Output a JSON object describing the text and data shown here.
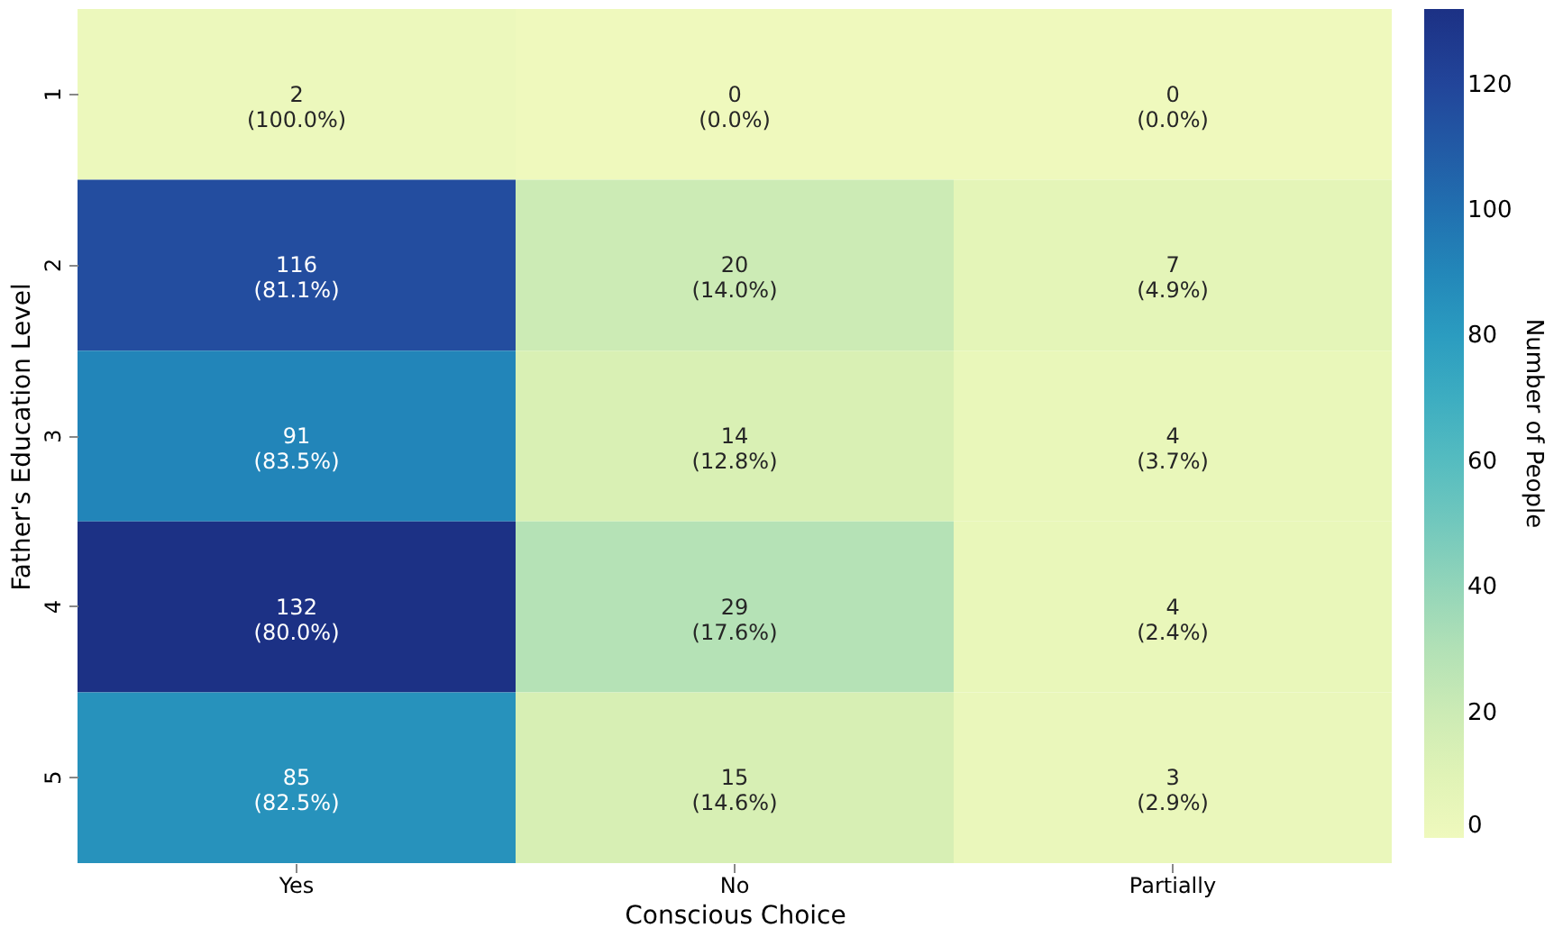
{
  "chart_data": {
    "type": "heatmap",
    "xlabel": "Conscious Choice",
    "ylabel": "Father's Education Level",
    "clabel": "Number of People",
    "categories": [
      "Yes",
      "No",
      "Partially"
    ],
    "y_categories": [
      "1",
      "2",
      "3",
      "4",
      "5"
    ],
    "cells": [
      [
        2,
        0,
        0
      ],
      [
        116,
        20,
        7
      ],
      [
        91,
        14,
        4
      ],
      [
        132,
        29,
        4
      ],
      [
        85,
        15,
        3
      ]
    ],
    "cell_labels": [
      [
        "2\n(100.0%)",
        "0\n(0.0%)",
        "0\n(0.0%)"
      ],
      [
        "116\n(81.1%)",
        "20\n(14.0%)",
        "7\n(4.9%)"
      ],
      [
        "91\n(83.5%)",
        "14\n(12.8%)",
        "4\n(3.7%)"
      ],
      [
        "132\n(80.0%)",
        "29\n(17.6%)",
        "4\n(2.4%)"
      ],
      [
        "85\n(82.5%)",
        "15\n(14.6%)",
        "3\n(2.9%)"
      ]
    ],
    "clim": [
      0,
      132
    ],
    "cticks": [
      0,
      20,
      40,
      60,
      80,
      100,
      120
    ]
  }
}
